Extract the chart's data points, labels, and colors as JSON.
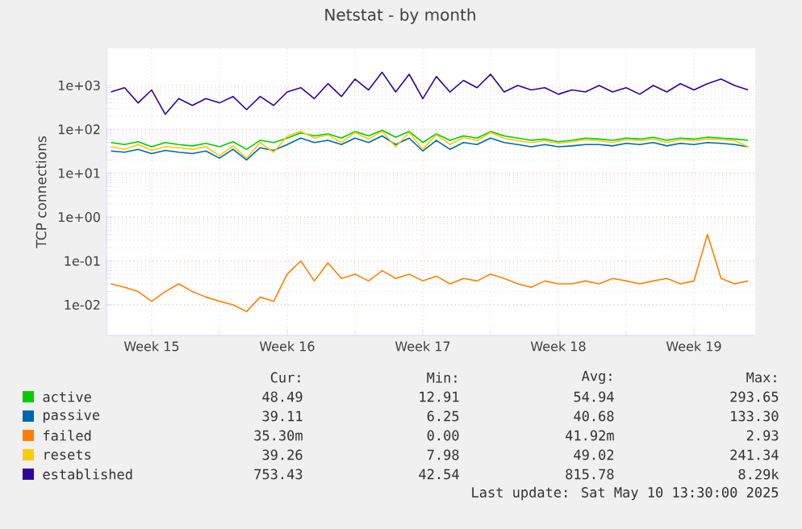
{
  "chart_data": {
    "type": "line",
    "title": "Netstat - by month",
    "ylabel": "TCP connections",
    "log": "y",
    "grid": true,
    "legend": "bottom",
    "ylim": [
      0.002,
      7000
    ],
    "yticks": [
      {
        "value": 0.01,
        "label": "1e-02"
      },
      {
        "value": 0.1,
        "label": "1e-01"
      },
      {
        "value": 1,
        "label": "1e+00"
      },
      {
        "value": 10,
        "label": "1e+01"
      },
      {
        "value": 100,
        "label": "1e+02"
      },
      {
        "value": 1000,
        "label": "1e+03"
      }
    ],
    "categories": [
      null,
      null,
      null,
      "Week 15",
      null,
      null,
      null,
      null,
      null,
      null,
      null,
      null,
      null,
      "Week 16",
      null,
      null,
      null,
      null,
      null,
      null,
      null,
      null,
      null,
      "Week 17",
      null,
      null,
      null,
      null,
      null,
      null,
      null,
      null,
      null,
      "Week 18",
      null,
      null,
      null,
      null,
      null,
      null,
      null,
      null,
      null,
      "Week 19",
      null,
      null,
      null,
      null
    ],
    "series": [
      {
        "name": "active",
        "color": "#00cc00",
        "values": [
          50,
          45,
          52,
          40,
          50,
          45,
          42,
          48,
          40,
          52,
          35,
          56,
          50,
          63,
          83,
          71,
          79,
          63,
          89,
          71,
          95,
          66,
          89,
          50,
          79,
          56,
          71,
          63,
          89,
          71,
          63,
          56,
          60,
          52,
          56,
          63,
          60,
          56,
          63,
          60,
          66,
          56,
          63,
          60,
          66,
          63,
          60,
          56
        ]
      },
      {
        "name": "passive",
        "color": "#0066b3",
        "values": [
          32,
          30,
          35,
          28,
          33,
          30,
          28,
          32,
          22,
          35,
          20,
          38,
          33,
          45,
          63,
          50,
          56,
          45,
          63,
          50,
          71,
          45,
          63,
          32,
          56,
          35,
          50,
          45,
          63,
          50,
          45,
          40,
          45,
          40,
          42,
          45,
          45,
          42,
          48,
          45,
          50,
          42,
          48,
          45,
          50,
          48,
          45,
          40
        ]
      },
      {
        "name": "failed",
        "color": "#ff8000",
        "values": [
          0.03,
          0.025,
          0.02,
          0.012,
          0.02,
          0.03,
          0.02,
          0.015,
          0.012,
          0.01,
          0.007,
          0.015,
          0.012,
          0.05,
          0.1,
          0.035,
          0.09,
          0.04,
          0.05,
          0.035,
          0.06,
          0.04,
          0.05,
          0.035,
          0.045,
          0.03,
          0.04,
          0.035,
          0.05,
          0.04,
          0.03,
          0.025,
          0.035,
          0.03,
          0.03,
          0.035,
          0.03,
          0.04,
          0.035,
          0.03,
          0.035,
          0.04,
          0.03,
          0.035,
          0.4,
          0.04,
          0.03,
          0.035
        ]
      },
      {
        "name": "resets",
        "color": "#ffcc00",
        "values": [
          40,
          35,
          45,
          33,
          40,
          38,
          35,
          40,
          25,
          42,
          22,
          50,
          30,
          70,
          90,
          63,
          75,
          50,
          85,
          60,
          90,
          40,
          85,
          35,
          75,
          45,
          65,
          55,
          85,
          63,
          55,
          50,
          55,
          48,
          52,
          58,
          55,
          50,
          58,
          55,
          60,
          50,
          58,
          55,
          60,
          58,
          55,
          40
        ]
      },
      {
        "name": "established",
        "color": "#330099",
        "values": [
          710,
          890,
          400,
          790,
          220,
          500,
          350,
          500,
          400,
          560,
          280,
          560,
          350,
          710,
          890,
          500,
          1100,
          560,
          1400,
          790,
          2000,
          710,
          1800,
          500,
          1600,
          710,
          1300,
          890,
          1800,
          710,
          1000,
          790,
          890,
          630,
          790,
          710,
          1000,
          710,
          890,
          630,
          1000,
          710,
          1100,
          790,
          1100,
          1400,
          1000,
          790
        ]
      }
    ],
    "annotations": [
      "Cur:",
      "Min:",
      "Avg:",
      "Max:",
      "48.49",
      "12.91",
      "54.94",
      "293.65",
      "39.11",
      "6.25",
      "40.68",
      "133.30",
      "35.30m",
      "0.00",
      "41.92m",
      "2.93",
      "39.26",
      "7.98",
      "49.02",
      "241.34",
      "753.43",
      "42.54",
      "815.78",
      "8.29k",
      "Last update:  Sat May 10 13:30:00 2025"
    ]
  }
}
